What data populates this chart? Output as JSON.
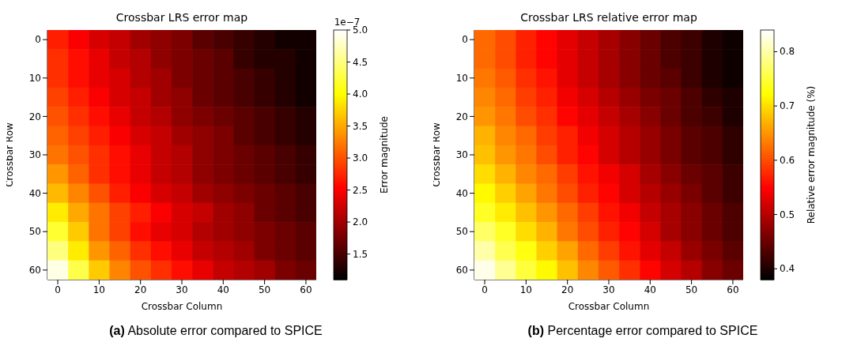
{
  "chart_data": [
    {
      "type": "heatmap",
      "title": "Crossbar LRS error map",
      "xlabel": "Crossbar Column",
      "ylabel": "Crossbar Row",
      "clabel": "Error magnitude",
      "categories": [
        "0",
        null,
        "10",
        null,
        "20",
        null,
        "30",
        null,
        "40",
        null,
        "50",
        null,
        "60"
      ],
      "y_categories": [
        "0",
        null,
        "10",
        null,
        "20",
        null,
        "30",
        null,
        "40",
        null,
        "50",
        null,
        "60"
      ],
      "cells": [
        [
          2.7,
          2.5,
          2.3,
          2.2,
          2.0,
          1.9,
          1.8,
          1.6,
          1.5,
          1.4,
          1.3,
          1.2,
          1.2
        ],
        [
          2.8,
          2.6,
          2.4,
          2.2,
          2.1,
          1.9,
          1.8,
          1.7,
          1.6,
          1.4,
          1.3,
          1.3,
          1.2
        ],
        [
          2.8,
          2.6,
          2.4,
          2.3,
          2.1,
          2.0,
          1.8,
          1.7,
          1.6,
          1.5,
          1.4,
          1.3,
          1.2
        ],
        [
          2.9,
          2.7,
          2.5,
          2.3,
          2.2,
          2.0,
          1.9,
          1.7,
          1.6,
          1.5,
          1.4,
          1.3,
          1.2
        ],
        [
          3.0,
          2.8,
          2.6,
          2.4,
          2.2,
          2.1,
          1.9,
          1.8,
          1.7,
          1.6,
          1.5,
          1.4,
          1.3
        ],
        [
          3.1,
          2.9,
          2.7,
          2.5,
          2.3,
          2.2,
          2.0,
          1.9,
          1.8,
          1.6,
          1.5,
          1.4,
          1.3
        ],
        [
          3.2,
          3.0,
          2.8,
          2.6,
          2.4,
          2.2,
          2.1,
          1.9,
          1.8,
          1.7,
          1.6,
          1.5,
          1.4
        ],
        [
          3.4,
          3.1,
          2.8,
          2.6,
          2.4,
          2.2,
          2.1,
          1.9,
          1.8,
          1.7,
          1.6,
          1.5,
          1.4
        ],
        [
          3.6,
          3.3,
          3.0,
          2.7,
          2.5,
          2.3,
          2.2,
          2.0,
          1.9,
          1.8,
          1.7,
          1.6,
          1.5
        ],
        [
          3.9,
          3.5,
          3.2,
          2.9,
          2.7,
          2.5,
          2.3,
          2.2,
          2.0,
          1.9,
          1.7,
          1.6,
          1.5
        ],
        [
          4.2,
          3.7,
          3.2,
          2.9,
          2.6,
          2.4,
          2.3,
          2.1,
          2.0,
          1.9,
          1.8,
          1.7,
          1.6
        ],
        [
          4.5,
          3.9,
          3.4,
          3.1,
          2.8,
          2.6,
          2.4,
          2.2,
          2.1,
          2.0,
          1.8,
          1.7,
          1.6
        ],
        [
          4.9,
          4.3,
          3.7,
          3.3,
          3.0,
          2.8,
          2.6,
          2.4,
          2.2,
          2.1,
          2.0,
          1.8,
          1.7
        ]
      ],
      "clim": [
        1.1,
        5.0
      ],
      "cticks": [
        1.5,
        {
          "value": 2,
          "label": "2.0"
        },
        2.5,
        {
          "value": 3,
          "label": "3.0"
        },
        3.5,
        {
          "value": 4,
          "label": "4.0"
        },
        4.5,
        {
          "value": 5,
          "label": "5.0"
        }
      ],
      "annotations": [
        "1e−7",
        "(a) Absolute error compared to SPICE"
      ]
    },
    {
      "type": "heatmap",
      "title": "Crossbar LRS relative error map",
      "xlabel": "Crossbar Column",
      "ylabel": "Crossbar Row",
      "clabel": "Relative error magnitude (%)",
      "categories": [
        "0",
        null,
        "10",
        null,
        "20",
        null,
        "30",
        null,
        "40",
        null,
        "50",
        null,
        "60"
      ],
      "y_categories": [
        "0",
        null,
        "10",
        null,
        "20",
        null,
        "30",
        null,
        "40",
        null,
        "50",
        null,
        "60"
      ],
      "cells": [
        [
          0.62,
          0.6,
          0.57,
          0.55,
          0.53,
          0.51,
          0.49,
          0.47,
          0.45,
          0.43,
          0.42,
          0.4,
          0.39
        ],
        [
          0.62,
          0.6,
          0.57,
          0.55,
          0.53,
          0.51,
          0.49,
          0.47,
          0.45,
          0.43,
          0.42,
          0.4,
          0.39
        ],
        [
          0.63,
          0.61,
          0.58,
          0.56,
          0.53,
          0.51,
          0.49,
          0.47,
          0.45,
          0.44,
          0.42,
          0.4,
          0.39
        ],
        [
          0.64,
          0.62,
          0.59,
          0.57,
          0.54,
          0.52,
          0.5,
          0.48,
          0.46,
          0.45,
          0.43,
          0.41,
          0.4
        ],
        [
          0.65,
          0.63,
          0.6,
          0.58,
          0.55,
          0.53,
          0.51,
          0.49,
          0.47,
          0.45,
          0.43,
          0.42,
          0.4
        ],
        [
          0.67,
          0.64,
          0.62,
          0.59,
          0.57,
          0.54,
          0.52,
          0.5,
          0.48,
          0.46,
          0.44,
          0.43,
          0.41
        ],
        [
          0.68,
          0.65,
          0.63,
          0.6,
          0.57,
          0.55,
          0.52,
          0.5,
          0.48,
          0.46,
          0.44,
          0.43,
          0.41
        ],
        [
          0.7,
          0.67,
          0.64,
          0.62,
          0.59,
          0.56,
          0.54,
          0.52,
          0.49,
          0.47,
          0.45,
          0.44,
          0.42
        ],
        [
          0.72,
          0.69,
          0.66,
          0.63,
          0.6,
          0.57,
          0.55,
          0.52,
          0.5,
          0.48,
          0.46,
          0.44,
          0.42
        ],
        [
          0.74,
          0.71,
          0.68,
          0.65,
          0.62,
          0.59,
          0.56,
          0.54,
          0.51,
          0.49,
          0.47,
          0.45,
          0.43
        ],
        [
          0.77,
          0.74,
          0.7,
          0.67,
          0.63,
          0.6,
          0.57,
          0.55,
          0.52,
          0.49,
          0.47,
          0.45,
          0.43
        ],
        [
          0.8,
          0.76,
          0.73,
          0.69,
          0.66,
          0.62,
          0.59,
          0.56,
          0.53,
          0.51,
          0.48,
          0.46,
          0.44
        ],
        [
          0.83,
          0.79,
          0.75,
          0.72,
          0.68,
          0.64,
          0.61,
          0.58,
          0.55,
          0.52,
          0.5,
          0.47,
          0.45
        ]
      ],
      "clim": [
        0.38,
        0.84
      ],
      "cticks": [
        0.4,
        0.5,
        0.6,
        0.7,
        0.8
      ],
      "annotations": [
        "(b) Percentage error compared to SPICE"
      ]
    }
  ]
}
